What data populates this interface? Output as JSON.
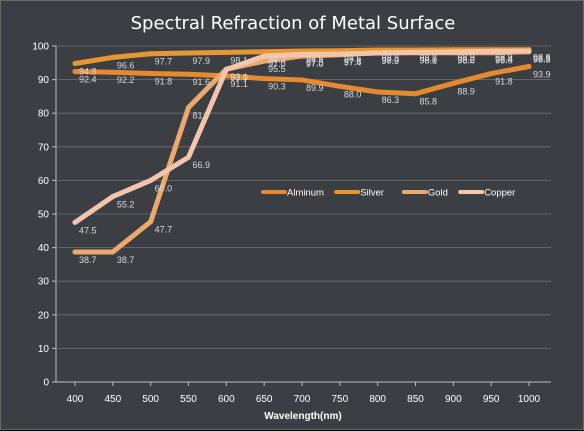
{
  "chart_data": {
    "type": "line",
    "title": "Spectral Refraction of Metal Surface",
    "xlabel": "Wavelength(nm)",
    "ylabel": "",
    "x": [
      400,
      450,
      500,
      550,
      600,
      650,
      700,
      750,
      800,
      850,
      900,
      950,
      1000
    ],
    "xlim": [
      400,
      1000
    ],
    "ylim": [
      0,
      100
    ],
    "yticks": [
      0,
      10,
      20,
      30,
      40,
      50,
      60,
      70,
      80,
      90,
      100
    ],
    "grid": "horizontal",
    "legend_position": "center-right",
    "series": [
      {
        "name": "Alminum",
        "color": "#e58a2e",
        "values": [
          92.4,
          92.2,
          91.8,
          91.6,
          91.1,
          90.3,
          89.9,
          88.0,
          86.3,
          85.8,
          88.9,
          91.8,
          93.9
        ],
        "labels": [
          "92.4",
          "92.2",
          "91.8",
          "91.6",
          "91.1",
          "90.3",
          "89.9",
          "88.0",
          "86.3",
          "85.8",
          "88.9",
          "91.8",
          "93.9"
        ]
      },
      {
        "name": "Silver",
        "color": "#e8962f",
        "values": [
          94.8,
          96.6,
          97.7,
          97.9,
          98.1,
          98.3,
          98.5,
          98.6,
          98.8,
          98.8,
          98.9,
          98.9,
          98.9
        ],
        "labels": [
          "94.8",
          "96.6",
          "97.7",
          "97.9",
          "98.1",
          "98.3",
          "98.5",
          "98.6",
          "98.8",
          "98.8",
          "98.9",
          "98.9",
          "98.9"
        ]
      },
      {
        "name": "Gold",
        "color": "#eda86e",
        "values": [
          38.7,
          38.7,
          47.7,
          81.7,
          93.1,
          95.5,
          97.0,
          97.4,
          98.0,
          98.0,
          98.0,
          98.0,
          98.3
        ],
        "labels": [
          "38.7",
          "38.7",
          "47.7",
          "81.7",
          "93.1",
          "95.5",
          "97.0",
          "97.4",
          "98.0",
          "98.0",
          "98.0",
          "98.0",
          "98.3"
        ]
      },
      {
        "name": "Copper",
        "color": "#f3c6ac",
        "values": [
          47.5,
          55.2,
          60.0,
          66.9,
          93.0,
          97.0,
          97.5,
          97.6,
          97.9,
          98.1,
          98.2,
          98.4,
          98.5
        ],
        "labels": [
          "47.5",
          "55.2",
          "60.0",
          "66.9",
          "93.0",
          "97.0",
          "97.5",
          "97.6",
          "97.9",
          "98.1",
          "98.2",
          "98.4",
          "98.5"
        ]
      }
    ]
  }
}
